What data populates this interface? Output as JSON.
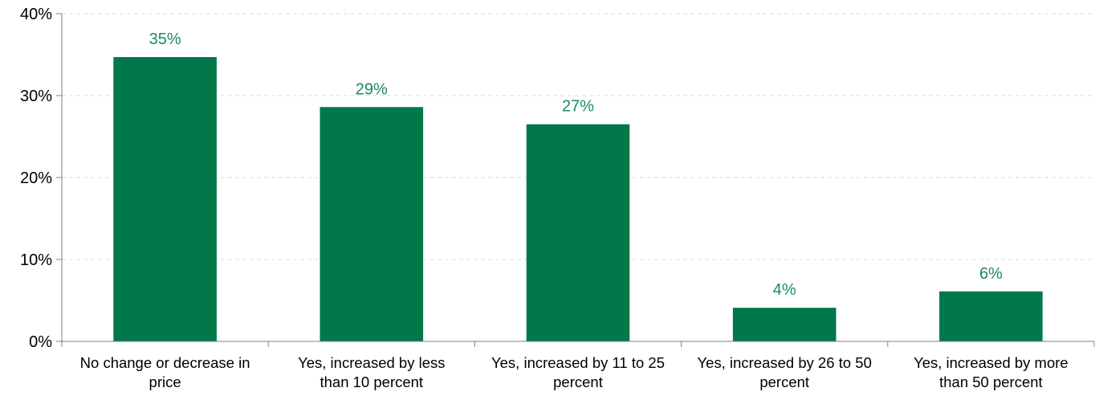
{
  "chart_data": {
    "type": "bar",
    "title": "",
    "xlabel": "",
    "ylabel": "",
    "categories": [
      [
        "No change or decrease in",
        "price"
      ],
      [
        "Yes, increased by less",
        "than 10 percent"
      ],
      [
        "Yes, increased by 11 to 25",
        "percent"
      ],
      [
        "Yes, increased by 26 to 50",
        "percent"
      ],
      [
        "Yes, increased by more",
        "than 50 percent"
      ]
    ],
    "values": [
      34.7,
      28.6,
      26.5,
      4.1,
      6.1
    ],
    "data_labels": [
      "35%",
      "29%",
      "27%",
      "4%",
      "6%"
    ],
    "ylim": [
      0,
      40
    ],
    "yticks": [
      {
        "value": 0,
        "label": "0%"
      },
      {
        "value": 10,
        "label": "10%"
      },
      {
        "value": 20,
        "label": "20%"
      },
      {
        "value": 30,
        "label": "30%"
      },
      {
        "value": 40,
        "label": "40%"
      }
    ],
    "grid": true,
    "legend": "none",
    "colors": {
      "bar": "#00784a",
      "data_label": "#1a8a5a",
      "gridline": "#d9d9d9",
      "axis": "#808080"
    }
  }
}
